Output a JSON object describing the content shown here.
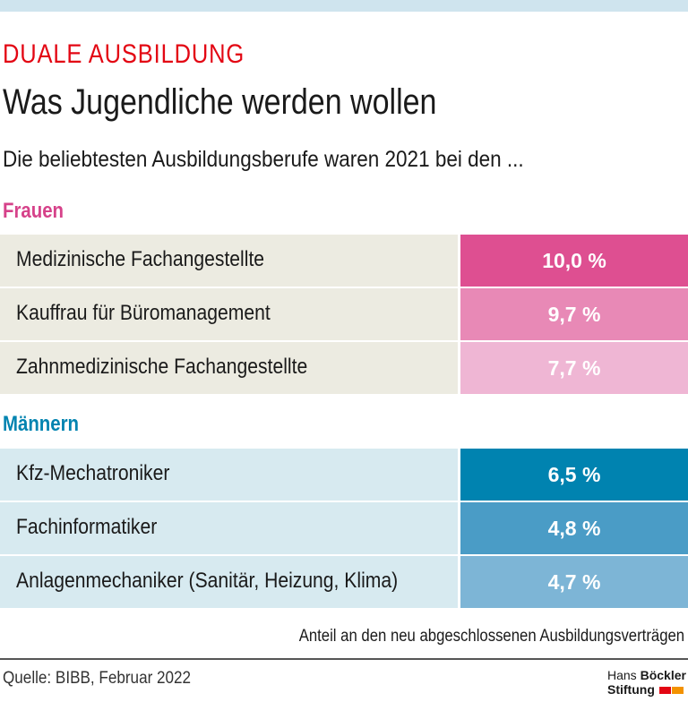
{
  "kicker": "DUALE AUSBILDUNG",
  "title": "Was Jugendliche werden wollen",
  "subtitle": "Die beliebtesten Ausbildungsberufe waren 2021 bei den ...",
  "chart_data": {
    "type": "table",
    "groups": [
      {
        "name": "Frauen",
        "color": "#d6428a",
        "rows": [
          {
            "label": "Medizinische Fachangestellte",
            "value": "10,0 %",
            "color": "#de4f91"
          },
          {
            "label": "Kauffrau für Büromanagement",
            "value": "9,7 %",
            "color": "#e889b6"
          },
          {
            "label": "Zahnmedizinische Fachangestellte",
            "value": "7,7 %",
            "color": "#efb6d4"
          }
        ]
      },
      {
        "name": "Männern",
        "color": "#0083b0",
        "rows": [
          {
            "label": "Kfz-Mechatroniker",
            "value": "6,5 %",
            "color": "#0083b0"
          },
          {
            "label": "Fachinformatiker",
            "value": "4,8 %",
            "color": "#4a9cc6"
          },
          {
            "label": "Anlagenmechaniker (Sanitär, Heizung, Klima)",
            "value": "4,7 %",
            "color": "#7db5d6"
          }
        ]
      }
    ],
    "note": "Anteil an den neu abgeschlossenen Ausbildungsverträgen"
  },
  "source": "Quelle: BIBB, Februar 2022",
  "logo": {
    "line1a": "Hans ",
    "line1b": "Böckler",
    "line2": "Stiftung"
  }
}
